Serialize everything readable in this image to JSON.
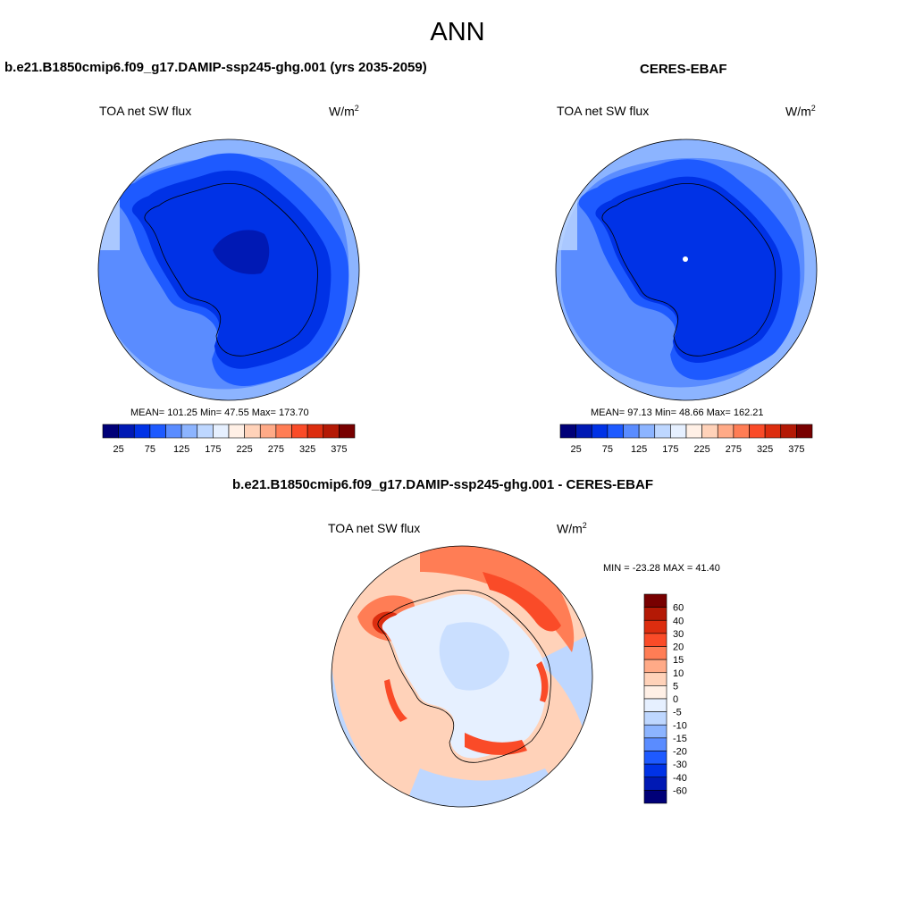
{
  "header": {
    "title": "ANN"
  },
  "panels": [
    {
      "title": "b.e21.B1850cmip6.f09_g17.DAMIP-ssp245-ghg.001 (yrs 2035-2059)",
      "variable": "TOA net SW flux",
      "units_base": "W/m",
      "units_exp": "2",
      "stats": "MEAN= 101.25  Min=  47.55  Max= 173.70",
      "colorbar": {
        "ticks": [
          "25",
          "75",
          "125",
          "175",
          "225",
          "275",
          "325",
          "375"
        ],
        "colors": [
          "#000078",
          "#0019b4",
          "#0032e6",
          "#1e5aff",
          "#5a8cff",
          "#8cb4ff",
          "#bed7ff",
          "#e6f0ff",
          "#fff0e6",
          "#ffd2b9",
          "#ffaa87",
          "#ff7d55",
          "#fa4b28",
          "#dc2d0f",
          "#b41905",
          "#780000"
        ]
      }
    },
    {
      "title": "CERES-EBAF",
      "variable": "TOA net SW flux",
      "units_base": "W/m",
      "units_exp": "2",
      "stats": "MEAN=  97.13  Min=  48.66  Max= 162.21",
      "colorbar": {
        "ticks": [
          "25",
          "75",
          "125",
          "175",
          "225",
          "275",
          "325",
          "375"
        ],
        "colors": [
          "#000078",
          "#0019b4",
          "#0032e6",
          "#1e5aff",
          "#5a8cff",
          "#8cb4ff",
          "#bed7ff",
          "#e6f0ff",
          "#fff0e6",
          "#ffd2b9",
          "#ffaa87",
          "#ff7d55",
          "#fa4b28",
          "#dc2d0f",
          "#b41905",
          "#780000"
        ]
      }
    },
    {
      "title": "b.e21.B1850cmip6.f09_g17.DAMIP-ssp245-ghg.001 - CERES-EBAF",
      "variable": "TOA net SW flux",
      "units_base": "W/m",
      "units_exp": "2",
      "stats": "MIN = -23.28 MAX =  41.40",
      "colorbar": {
        "ticks": [
          "60",
          "40",
          "30",
          "20",
          "15",
          "10",
          "5",
          "0",
          "-5",
          "-10",
          "-15",
          "-20",
          "-30",
          "-40",
          "-60"
        ],
        "colors": [
          "#780000",
          "#b41905",
          "#dc2d0f",
          "#fa4b28",
          "#ff7d55",
          "#ffaa87",
          "#ffd2b9",
          "#fff0e6",
          "#e6f0ff",
          "#bed7ff",
          "#8cb4ff",
          "#5a8cff",
          "#1e5aff",
          "#0032e6",
          "#0019b4",
          "#000078"
        ]
      }
    }
  ]
}
